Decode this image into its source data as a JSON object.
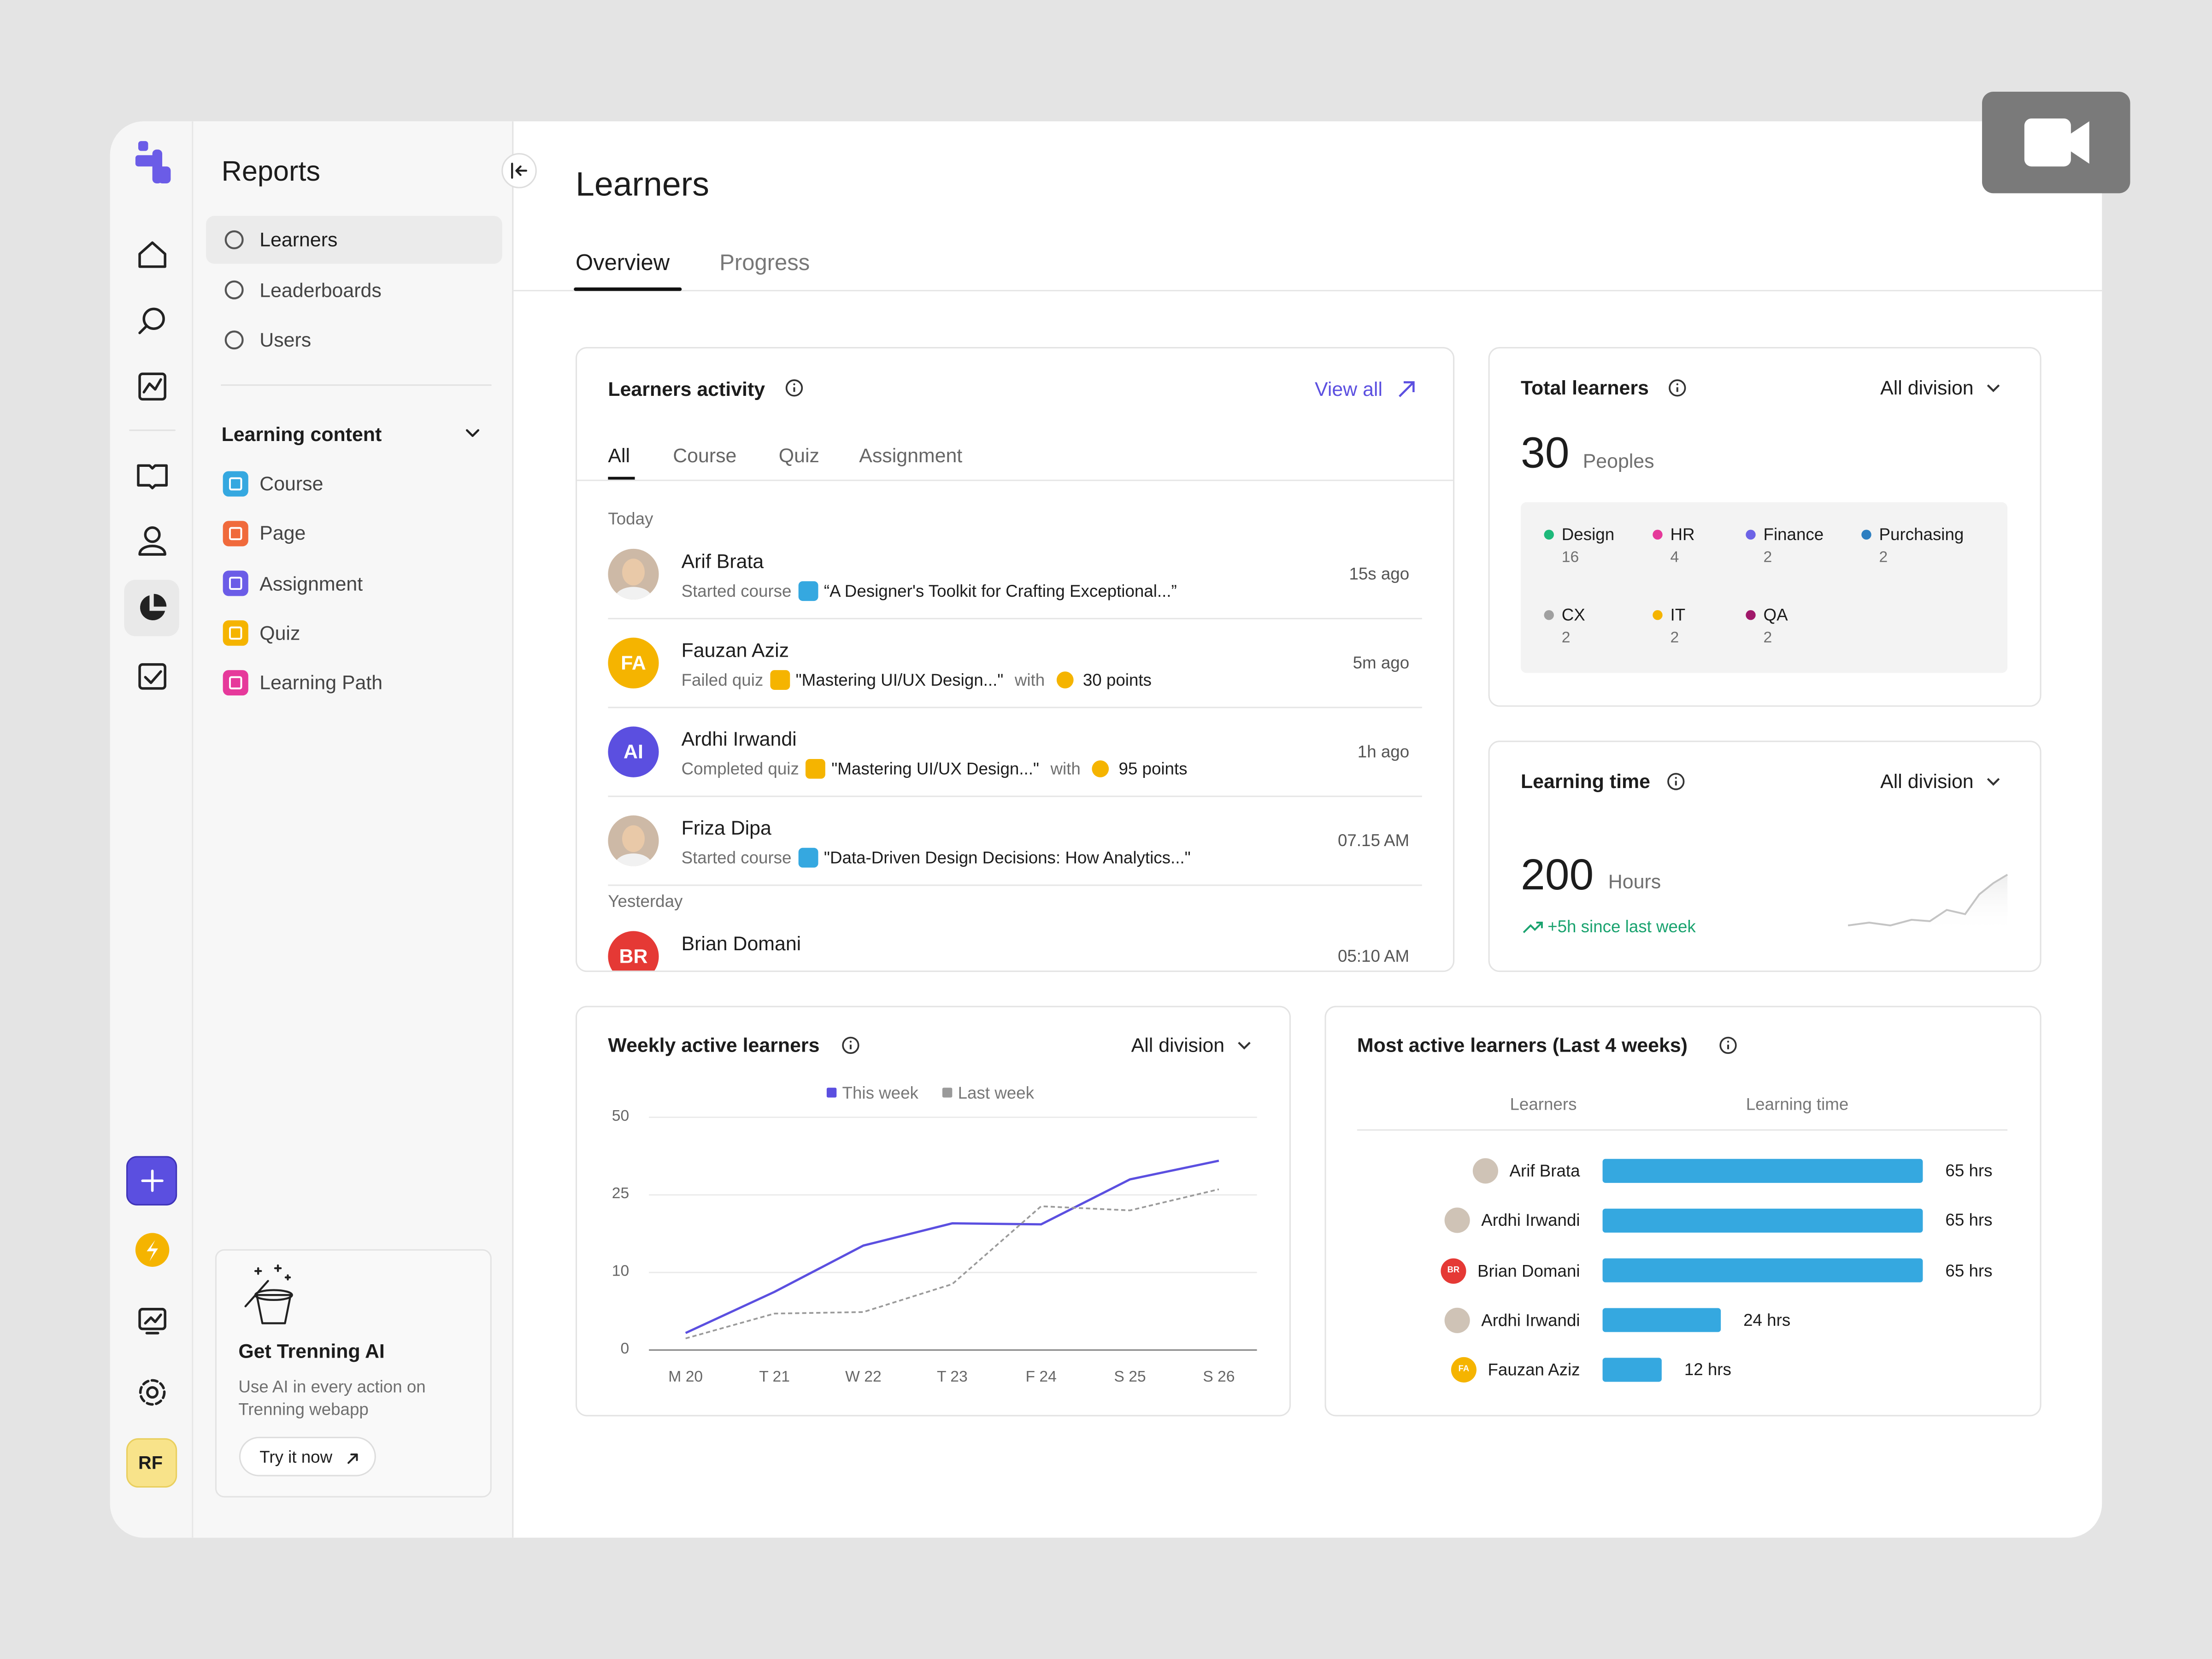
{
  "sidebar": {
    "title": "Reports",
    "items": [
      "Learners",
      "Leaderboards",
      "Users"
    ],
    "section": "Learning content",
    "content_items": [
      {
        "label": "Course",
        "color": "#35a8e0"
      },
      {
        "label": "Page",
        "color": "#f06a3c"
      },
      {
        "label": "Assignment",
        "color": "#6b5ce7"
      },
      {
        "label": "Quiz",
        "color": "#f5b400"
      },
      {
        "label": "Learning Path",
        "color": "#e6399b"
      }
    ],
    "promo": {
      "title": "Get Trenning AI",
      "text": "Use AI in every action on Trenning webapp",
      "button": "Try it now"
    },
    "user_initials": "RF"
  },
  "header": {
    "title": "Learners",
    "tabs": [
      "Overview",
      "Progress"
    ]
  },
  "activity": {
    "title": "Learners activity",
    "link": "View all",
    "tabs": [
      "All",
      "Course",
      "Quiz",
      "Assignment"
    ],
    "groups": [
      {
        "label": "Today",
        "items": [
          {
            "name": "Arif Brata",
            "action": "Started course",
            "kind": "course",
            "subject": "“A Designer's Toolkit for Crafting Exceptional...”",
            "time": "15s ago"
          },
          {
            "name": "Fauzan Aziz",
            "initials": "FA",
            "avatar_color": "#f5b400",
            "action": "Failed quiz",
            "kind": "quiz",
            "subject": "\"Mastering UI/UX Design...\"",
            "with": "with",
            "points": "30 points",
            "time": "5m ago"
          },
          {
            "name": "Ardhi Irwandi",
            "initials": "AI",
            "avatar_color": "#5b4fe0",
            "action": "Completed quiz",
            "kind": "quiz",
            "subject": "\"Mastering UI/UX Design...\"",
            "with": "with",
            "points": "95 points",
            "time": "1h ago"
          },
          {
            "name": "Friza Dipa",
            "action": "Started course",
            "kind": "course",
            "subject": "\"Data-Driven Design Decisions: How Analytics...\"",
            "time": "07.15 AM"
          }
        ]
      },
      {
        "label": "Yesterday",
        "items": [
          {
            "name": "Brian Domani",
            "initials": "BR",
            "avatar_color": "#e53935",
            "time": "05:10 AM"
          }
        ]
      }
    ]
  },
  "total": {
    "title": "Total learners",
    "filter": "All division",
    "count": 30,
    "unit": "Peoples",
    "divisions": [
      {
        "name": "Design",
        "count": 16,
        "color": "#1db97a"
      },
      {
        "name": "HR",
        "count": 4,
        "color": "#e5399a"
      },
      {
        "name": "Finance",
        "count": 2,
        "color": "#6c63e6"
      },
      {
        "name": "Purchasing",
        "count": 2,
        "color": "#2d7fc1"
      },
      {
        "name": "CX",
        "count": 2,
        "color": "#a0a0a0"
      },
      {
        "name": "IT",
        "count": 2,
        "color": "#f5b400"
      },
      {
        "name": "QA",
        "count": 2,
        "color": "#a0186a"
      }
    ]
  },
  "learning_time": {
    "title": "Learning time",
    "filter": "All division",
    "value": 200,
    "unit": "Hours",
    "change": "+5h since last week"
  },
  "weekly": {
    "title": "Weekly active learners",
    "filter": "All division",
    "chart": {
      "type": "line",
      "categories": [
        "M 20",
        "T 21",
        "W 22",
        "T 23",
        "F 24",
        "S 25",
        "S 26"
      ],
      "series": [
        {
          "name": "This week",
          "color": "#5b4fe0",
          "values": [
            2.2,
            7.5,
            15.2,
            19.5,
            19.3,
            30,
            36
          ]
        },
        {
          "name": "Last week",
          "color": "#9a9a9a",
          "dash": true,
          "values": [
            1.5,
            4.7,
            4.9,
            8.5,
            22.8,
            22,
            26.8
          ]
        }
      ],
      "ylim": [
        0,
        50
      ],
      "yticks": [
        0,
        10,
        25,
        50
      ],
      "grid": true
    }
  },
  "most_active": {
    "title": "Most active learners (Last 4 weeks)",
    "columns": [
      "Learners",
      "Learning time"
    ],
    "chart": {
      "type": "bar",
      "orientation": "horizontal",
      "categories": [
        "Arif Brata",
        "Ardhi Irwandi",
        "Brian Domani",
        "Ardhi Irwandi",
        "Fauzan Aziz"
      ],
      "values": [
        65,
        65,
        65,
        24,
        12
      ],
      "value_labels": [
        "65 hrs",
        "65 hrs",
        "65 hrs",
        "24 hrs",
        "12 hrs"
      ],
      "color": "#35a8e0"
    }
  }
}
